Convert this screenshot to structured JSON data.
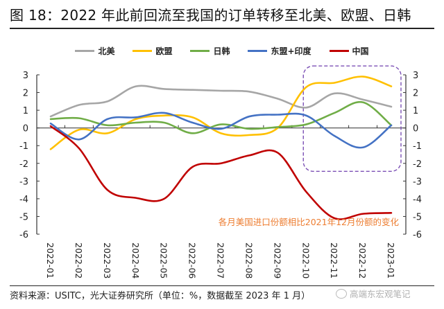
{
  "header": {
    "title": "图 18：2022 年此前回流至我国的订单转移至北美、欧盟、日韩"
  },
  "footer": {
    "source": "资料来源：USITC，光大证券研究所（单位：%，数据截至 2023 年 1 月）",
    "watermark": "高端东宏观笔记"
  },
  "chart_data": {
    "type": "line",
    "title": "图 18：2022 年此前回流至我国的订单转移至北美、欧盟、日韩",
    "xlabel": "",
    "ylabel": "",
    "unit": "%",
    "categories": [
      "2022-01",
      "2022-02",
      "2022-03",
      "2022-04",
      "2022-05",
      "2022-06",
      "2022-07",
      "2022-08",
      "2022-09",
      "2022-10",
      "2022-11",
      "2022-12",
      "2023-01"
    ],
    "ylim": [
      -6,
      3
    ],
    "yticks": [
      "3",
      "2",
      "1",
      "0",
      "-1",
      "-2",
      "-3",
      "-4",
      "-5",
      "-6"
    ],
    "ytick_values": [
      3,
      2,
      1,
      0,
      -1,
      -2,
      -3,
      -4,
      -5,
      -6
    ],
    "grid": false,
    "legend_position": "top-center",
    "annotation": "各月美国进口份额相比2021年12月份额的变化",
    "highlight_box": {
      "from": "2022-10",
      "to": "2023-01",
      "color": "#7b4fb5"
    },
    "series": [
      {
        "name": "北美",
        "color": "#a6a6a6",
        "values": [
          0.65,
          1.3,
          1.5,
          2.35,
          2.2,
          2.15,
          2.1,
          2.05,
          1.65,
          1.15,
          1.95,
          1.6,
          1.2
        ]
      },
      {
        "name": "欧盟",
        "color": "#ffc000",
        "values": [
          -1.2,
          -0.1,
          -0.3,
          0.5,
          0.7,
          0.6,
          -0.3,
          -0.4,
          0.0,
          2.3,
          2.55,
          2.9,
          2.35
        ]
      },
      {
        "name": "日韩",
        "color": "#70ad47",
        "values": [
          0.5,
          0.55,
          0.15,
          0.3,
          0.3,
          -0.3,
          0.2,
          -0.05,
          0.05,
          0.2,
          0.85,
          1.45,
          0.15
        ]
      },
      {
        "name": "东盟+印度",
        "color": "#4472c4",
        "values": [
          0.25,
          -0.65,
          0.5,
          0.6,
          0.85,
          0.3,
          -0.05,
          0.65,
          0.75,
          0.7,
          -0.45,
          -1.1,
          0.15
        ]
      },
      {
        "name": "中国",
        "color": "#c00000",
        "values": [
          0.1,
          -1.15,
          -3.5,
          -3.95,
          -4.0,
          -2.2,
          -2.0,
          -1.55,
          -1.4,
          -3.6,
          -5.1,
          -4.85,
          -4.8
        ]
      }
    ]
  }
}
